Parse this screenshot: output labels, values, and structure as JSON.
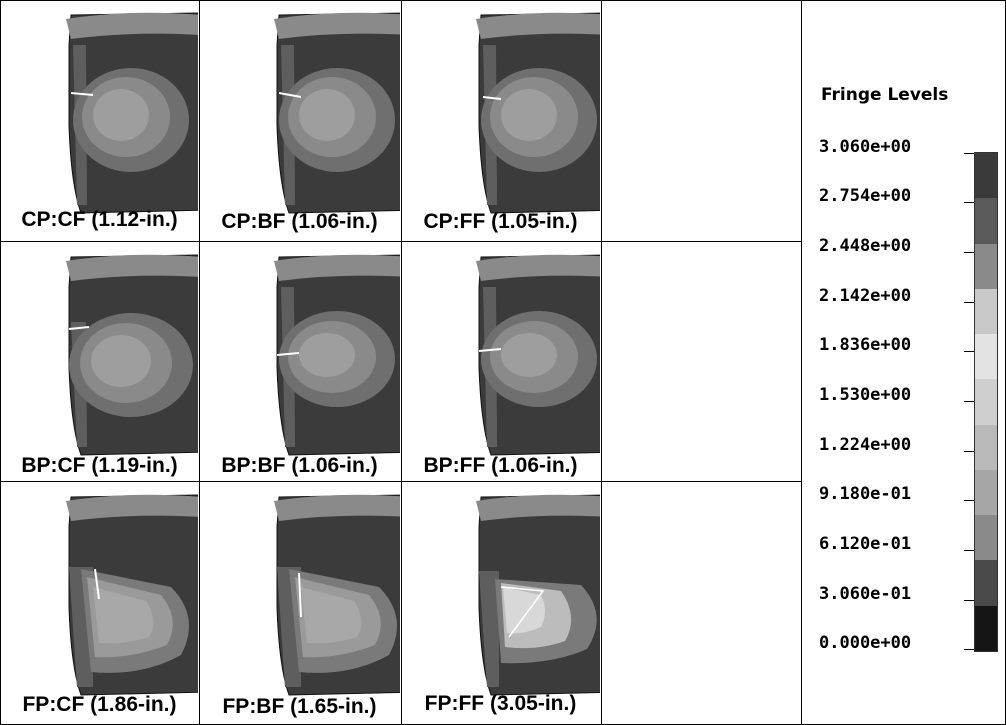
{
  "panels": [
    {
      "label": "CP:CF (1.12-in.)"
    },
    {
      "label": "CP:BF (1.06-in.)"
    },
    {
      "label": "CP:FF (1.05-in.)"
    },
    {
      "label": "BP:CF (1.19-in.)"
    },
    {
      "label": "BP:BF (1.06-in.)"
    },
    {
      "label": "BP:FF (1.06-in.)"
    },
    {
      "label": "FP:CF (1.86-in.)"
    },
    {
      "label": "FP:BF (1.65-in.)"
    },
    {
      "label": "FP:FF (3.05-in.)"
    }
  ],
  "legend": {
    "title": "Fringe Levels",
    "levels": [
      "3.060e+00",
      "2.754e+00",
      "2.448e+00",
      "2.142e+00",
      "1.836e+00",
      "1.530e+00",
      "1.224e+00",
      "9.180e-01",
      "6.120e-01",
      "3.060e-01",
      "0.000e+00"
    ],
    "band_colors": [
      "#3a3a3a",
      "#5a5a5a",
      "#8a8a8a",
      "#c8c8c8",
      "#e3e3e3",
      "#cfcfcf",
      "#b9b9b9",
      "#a6a6a6",
      "#8a8a8a",
      "#4a4a4a",
      "#151515"
    ]
  }
}
